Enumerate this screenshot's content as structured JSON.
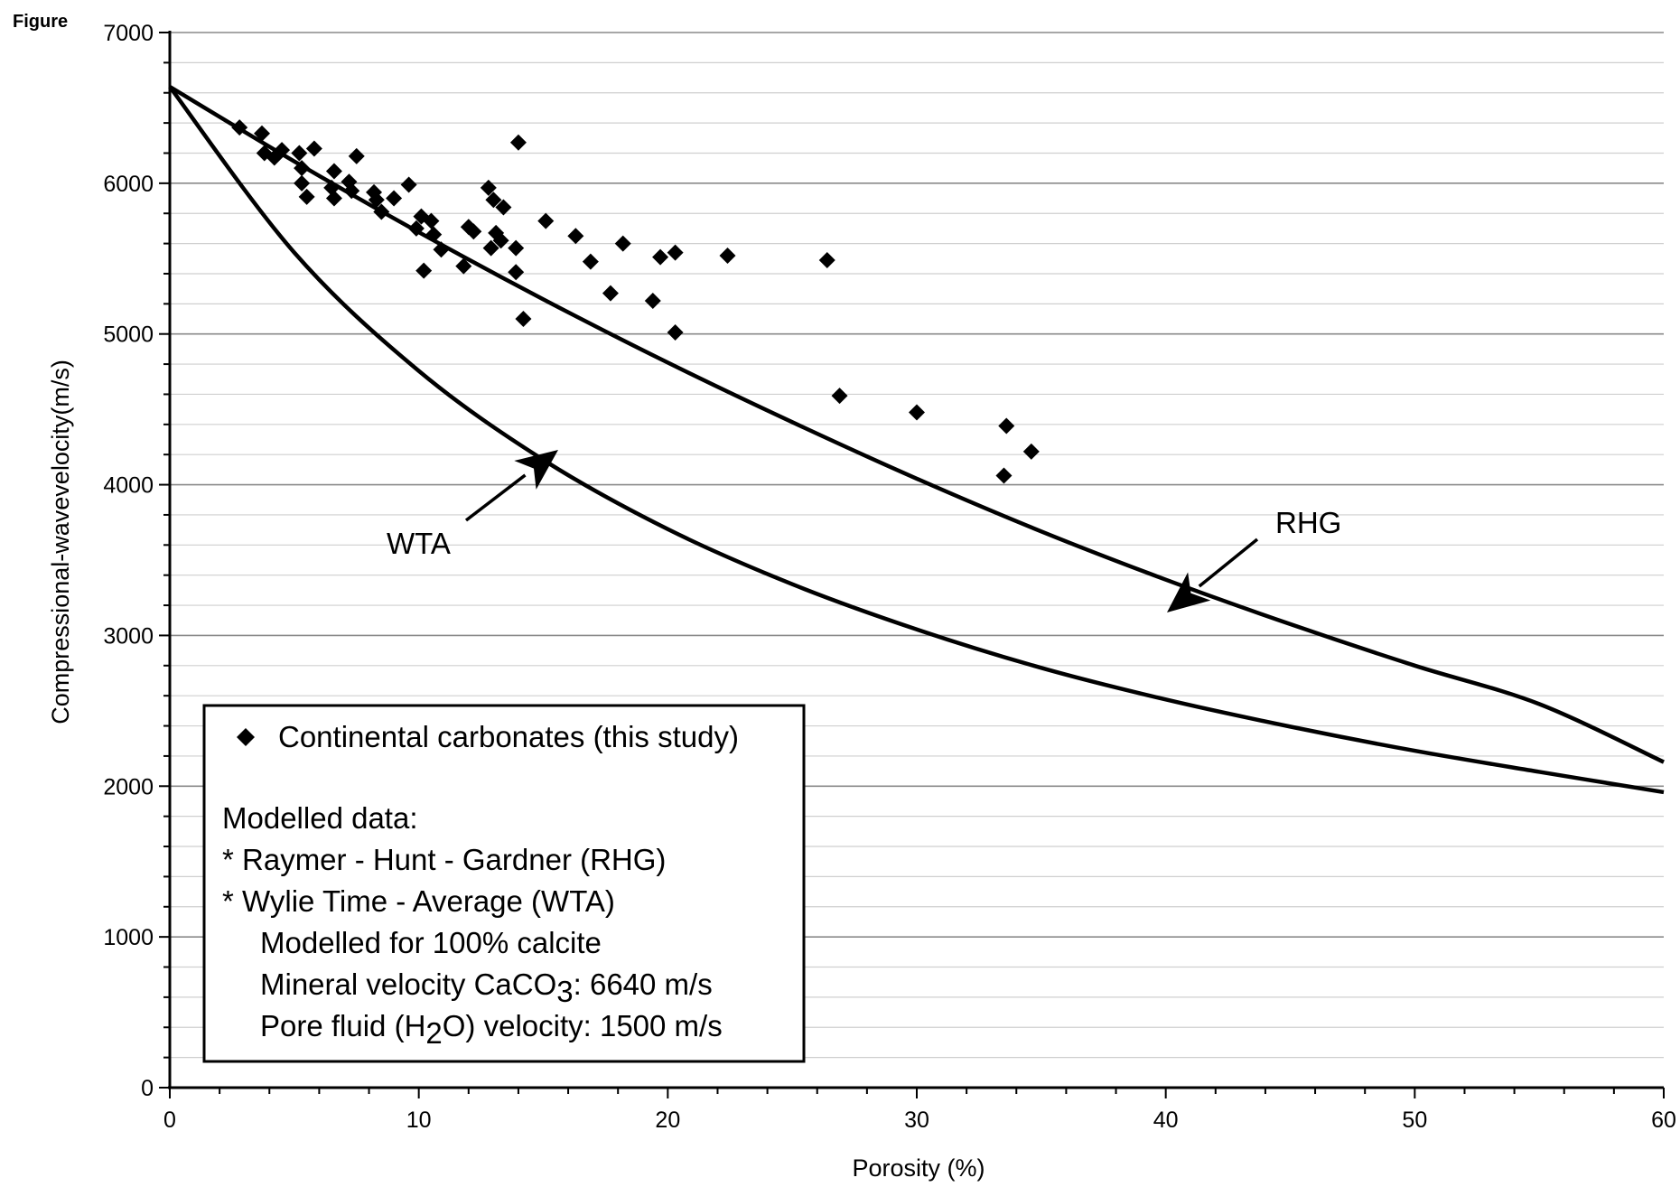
{
  "figure_label": "Figure",
  "chart_data": {
    "type": "scatter",
    "xlabel": "Porosity (%)",
    "ylabel": "Compressional-wavevelocity(m/s)",
    "xlim": [
      0,
      60
    ],
    "ylim": [
      0,
      7000
    ],
    "x_ticks": [
      0,
      10,
      20,
      30,
      40,
      50,
      60
    ],
    "y_ticks": [
      0,
      1000,
      2000,
      3000,
      4000,
      5000,
      6000,
      7000
    ],
    "y_minor_step": 200,
    "grid": true,
    "series": [
      {
        "name": "Continental carbonates (this study)",
        "marker": "diamond",
        "color": "#000000",
        "points": [
          [
            2.8,
            6370
          ],
          [
            3.7,
            6330
          ],
          [
            3.8,
            6200
          ],
          [
            4.2,
            6170
          ],
          [
            4.5,
            6220
          ],
          [
            5.2,
            6200
          ],
          [
            5.8,
            6230
          ],
          [
            5.3,
            6100
          ],
          [
            5.3,
            6000
          ],
          [
            5.5,
            5910
          ],
          [
            6.6,
            6080
          ],
          [
            6.5,
            5970
          ],
          [
            6.6,
            5900
          ],
          [
            7.2,
            6010
          ],
          [
            7.3,
            5950
          ],
          [
            7.5,
            6180
          ],
          [
            8.2,
            5940
          ],
          [
            8.3,
            5890
          ],
          [
            8.5,
            5810
          ],
          [
            9.0,
            5900
          ],
          [
            9.6,
            5990
          ],
          [
            9.9,
            5700
          ],
          [
            10.1,
            5780
          ],
          [
            10.2,
            5420
          ],
          [
            10.5,
            5750
          ],
          [
            10.6,
            5660
          ],
          [
            10.9,
            5560
          ],
          [
            11.8,
            5450
          ],
          [
            12.0,
            5710
          ],
          [
            12.2,
            5680
          ],
          [
            12.8,
            5970
          ],
          [
            13.0,
            5890
          ],
          [
            13.1,
            5670
          ],
          [
            12.9,
            5570
          ],
          [
            13.3,
            5620
          ],
          [
            13.4,
            5840
          ],
          [
            14.0,
            6270
          ],
          [
            13.9,
            5570
          ],
          [
            13.9,
            5410
          ],
          [
            14.2,
            5100
          ],
          [
            15.1,
            5750
          ],
          [
            16.3,
            5650
          ],
          [
            16.9,
            5480
          ],
          [
            17.7,
            5270
          ],
          [
            18.2,
            5600
          ],
          [
            19.4,
            5220
          ],
          [
            19.7,
            5510
          ],
          [
            20.3,
            5540
          ],
          [
            20.3,
            5010
          ],
          [
            22.4,
            5520
          ],
          [
            26.4,
            5490
          ],
          [
            26.9,
            4590
          ],
          [
            30.0,
            4480
          ],
          [
            33.6,
            4390
          ],
          [
            33.5,
            4060
          ],
          [
            34.6,
            4220
          ]
        ]
      },
      {
        "name": "Raymer - Hunt - Gardner (RHG)",
        "type": "line",
        "color": "#000000",
        "curve_points": [
          [
            0,
            6640
          ],
          [
            5,
            6145
          ],
          [
            10,
            5675
          ],
          [
            15,
            5230
          ],
          [
            20,
            4810
          ],
          [
            25,
            4415
          ],
          [
            30,
            4040
          ],
          [
            35,
            3690
          ],
          [
            40,
            3370
          ],
          [
            45,
            3075
          ],
          [
            50,
            2800
          ],
          [
            55,
            2545
          ],
          [
            60,
            2160
          ]
        ]
      },
      {
        "name": "Wylie Time - Average (WTA)",
        "type": "line",
        "color": "#000000",
        "curve_points": [
          [
            0,
            6640
          ],
          [
            5,
            5540
          ],
          [
            10,
            4755
          ],
          [
            15,
            4165
          ],
          [
            20,
            3705
          ],
          [
            25,
            3340
          ],
          [
            30,
            3040
          ],
          [
            35,
            2785
          ],
          [
            40,
            2575
          ],
          [
            45,
            2395
          ],
          [
            50,
            2235
          ],
          [
            55,
            2095
          ],
          [
            60,
            1960
          ]
        ]
      }
    ],
    "annotations": [
      {
        "id": "wta",
        "text": "WTA"
      },
      {
        "id": "rhg",
        "text": "RHG"
      }
    ],
    "legend": {
      "placement": "bottom-left",
      "marker_label": "Continental carbonates (this study)",
      "lines": [
        "Modelled data:",
        "* Raymer - Hunt - Gardner (RHG)",
        "* Wylie Time - Average (WTA)",
        "Modelled for 100% calcite",
        "Mineral velocity CaCO3: 6640 m/s",
        "Pore fluid (H2O) velocity: 1500 m/s"
      ]
    }
  }
}
